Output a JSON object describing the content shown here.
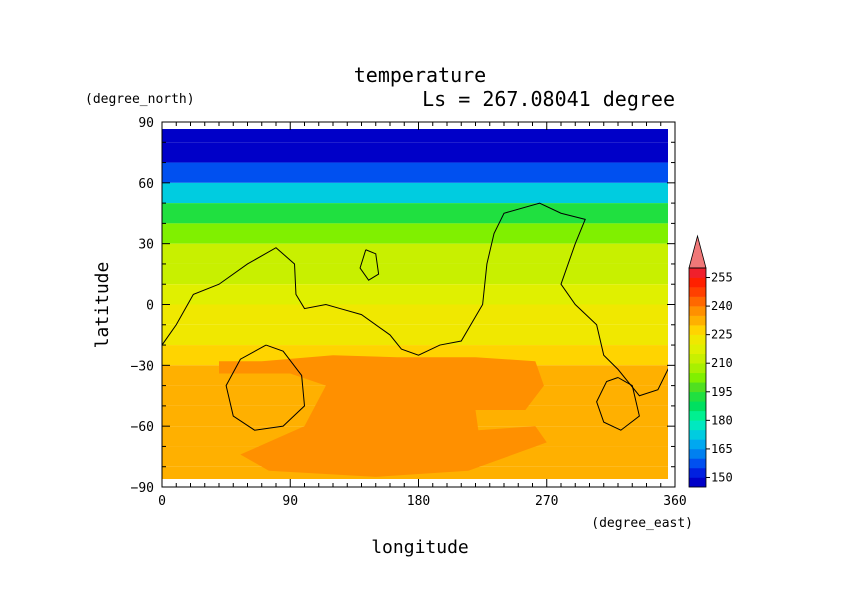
{
  "chart_data": {
    "type": "heatmap",
    "title": "temperature",
    "subtitle": "Ls = 267.08041 degree",
    "xlabel": "longitude",
    "ylabel": "latitude",
    "x_unit": "(degree_east)",
    "y_unit": "(degree_north)",
    "xlim": [
      0,
      360
    ],
    "ylim": [
      -90,
      90
    ],
    "x_ticks": [
      0,
      90,
      180,
      270,
      360
    ],
    "y_ticks": [
      90,
      60,
      30,
      0,
      -30,
      -60,
      -90
    ],
    "x_tick_labels": [
      "0",
      "90",
      "180",
      "270",
      "360"
    ],
    "y_tick_labels": [
      "90",
      "60",
      "30",
      "0",
      "−30",
      "−60",
      "−90"
    ],
    "colorbar": {
      "levels": [
        145,
        150,
        155,
        160,
        165,
        170,
        175,
        180,
        185,
        190,
        195,
        200,
        205,
        210,
        215,
        220,
        225,
        230,
        235,
        240,
        245,
        250,
        255,
        260
      ],
      "labels": [
        "150",
        "165",
        "180",
        "195",
        "210",
        "225",
        "240",
        "255"
      ],
      "label_values": [
        150,
        165,
        180,
        195,
        210,
        225,
        240,
        255
      ],
      "colors": [
        "#0000c8",
        "#0020e0",
        "#0050f0",
        "#0080f0",
        "#00a8f0",
        "#00cce0",
        "#00e8c0",
        "#00f090",
        "#00e060",
        "#20e040",
        "#50e020",
        "#80f000",
        "#a8f000",
        "#c8f000",
        "#e0f000",
        "#f0e800",
        "#ffd400",
        "#ffb000",
        "#ff9000",
        "#ff6800",
        "#ff4000",
        "#ff2000",
        "#f0202c"
      ],
      "over_color": "#f07878"
    },
    "latitude_bands": [
      {
        "lat": 85,
        "temp": 147
      },
      {
        "lat": 75,
        "temp": 149
      },
      {
        "lat": 65,
        "temp": 155
      },
      {
        "lat": 55,
        "temp": 172
      },
      {
        "lat": 45,
        "temp": 190
      },
      {
        "lat": 35,
        "temp": 203
      },
      {
        "lat": 25,
        "temp": 210
      },
      {
        "lat": 15,
        "temp": 214
      },
      {
        "lat": 5,
        "temp": 218
      },
      {
        "lat": -5,
        "temp": 221
      },
      {
        "lat": -15,
        "temp": 224
      },
      {
        "lat": -25,
        "temp": 229
      },
      {
        "lat": -35,
        "temp": 233
      },
      {
        "lat": -45,
        "temp": 234
      },
      {
        "lat": -55,
        "temp": 234
      },
      {
        "lat": -65,
        "temp": 232
      },
      {
        "lat": -75,
        "temp": 233
      },
      {
        "lat": -85,
        "temp": 230
      }
    ],
    "warm_regions": [
      {
        "name": "southern warm region",
        "temp": 238,
        "points": [
          [
            40,
            -28
          ],
          [
            70,
            -28
          ],
          [
            120,
            -25
          ],
          [
            165,
            -26
          ],
          [
            220,
            -26
          ],
          [
            262,
            -28
          ],
          [
            268,
            -40
          ],
          [
            255,
            -52
          ],
          [
            220,
            -52
          ],
          [
            222,
            -62
          ],
          [
            262,
            -60
          ],
          [
            270,
            -68
          ],
          [
            215,
            -82
          ],
          [
            150,
            -85
          ],
          [
            75,
            -82
          ],
          [
            55,
            -74
          ],
          [
            100,
            -60
          ],
          [
            115,
            -40
          ],
          [
            90,
            -34
          ],
          [
            40,
            -34
          ]
        ]
      }
    ],
    "topography_contours": [
      {
        "points": [
          [
            0,
            -20
          ],
          [
            10,
            -10
          ],
          [
            22,
            5
          ],
          [
            40,
            10
          ],
          [
            60,
            20
          ],
          [
            80,
            28
          ],
          [
            93,
            20
          ],
          [
            94,
            5
          ],
          [
            100,
            -2
          ],
          [
            115,
            0
          ],
          [
            125,
            -2
          ],
          [
            140,
            -5
          ],
          [
            160,
            -15
          ],
          [
            168,
            -22
          ],
          [
            180,
            -25
          ],
          [
            195,
            -20
          ],
          [
            210,
            -18
          ],
          [
            225,
            0
          ],
          [
            228,
            20
          ],
          [
            233,
            35
          ],
          [
            240,
            45
          ],
          [
            265,
            50
          ],
          [
            280,
            45
          ],
          [
            297,
            42
          ],
          [
            290,
            30
          ],
          [
            280,
            10
          ],
          [
            290,
            0
          ],
          [
            305,
            -10
          ],
          [
            310,
            -25
          ],
          [
            320,
            -32
          ],
          [
            335,
            -45
          ],
          [
            348,
            -42
          ],
          [
            360,
            -25
          ]
        ]
      },
      {
        "points": [
          [
            73,
            -20
          ],
          [
            85,
            -23
          ],
          [
            98,
            -35
          ],
          [
            100,
            -50
          ],
          [
            85,
            -60
          ],
          [
            65,
            -62
          ],
          [
            50,
            -55
          ],
          [
            45,
            -40
          ],
          [
            55,
            -27
          ],
          [
            73,
            -20
          ]
        ]
      },
      {
        "points": [
          [
            320,
            -36
          ],
          [
            330,
            -40
          ],
          [
            335,
            -55
          ],
          [
            322,
            -62
          ],
          [
            310,
            -58
          ],
          [
            305,
            -48
          ],
          [
            312,
            -38
          ],
          [
            320,
            -36
          ]
        ]
      },
      {
        "points": [
          [
            143,
            27
          ],
          [
            150,
            25
          ],
          [
            152,
            15
          ],
          [
            145,
            12
          ],
          [
            139,
            18
          ],
          [
            143,
            27
          ]
        ]
      }
    ]
  }
}
